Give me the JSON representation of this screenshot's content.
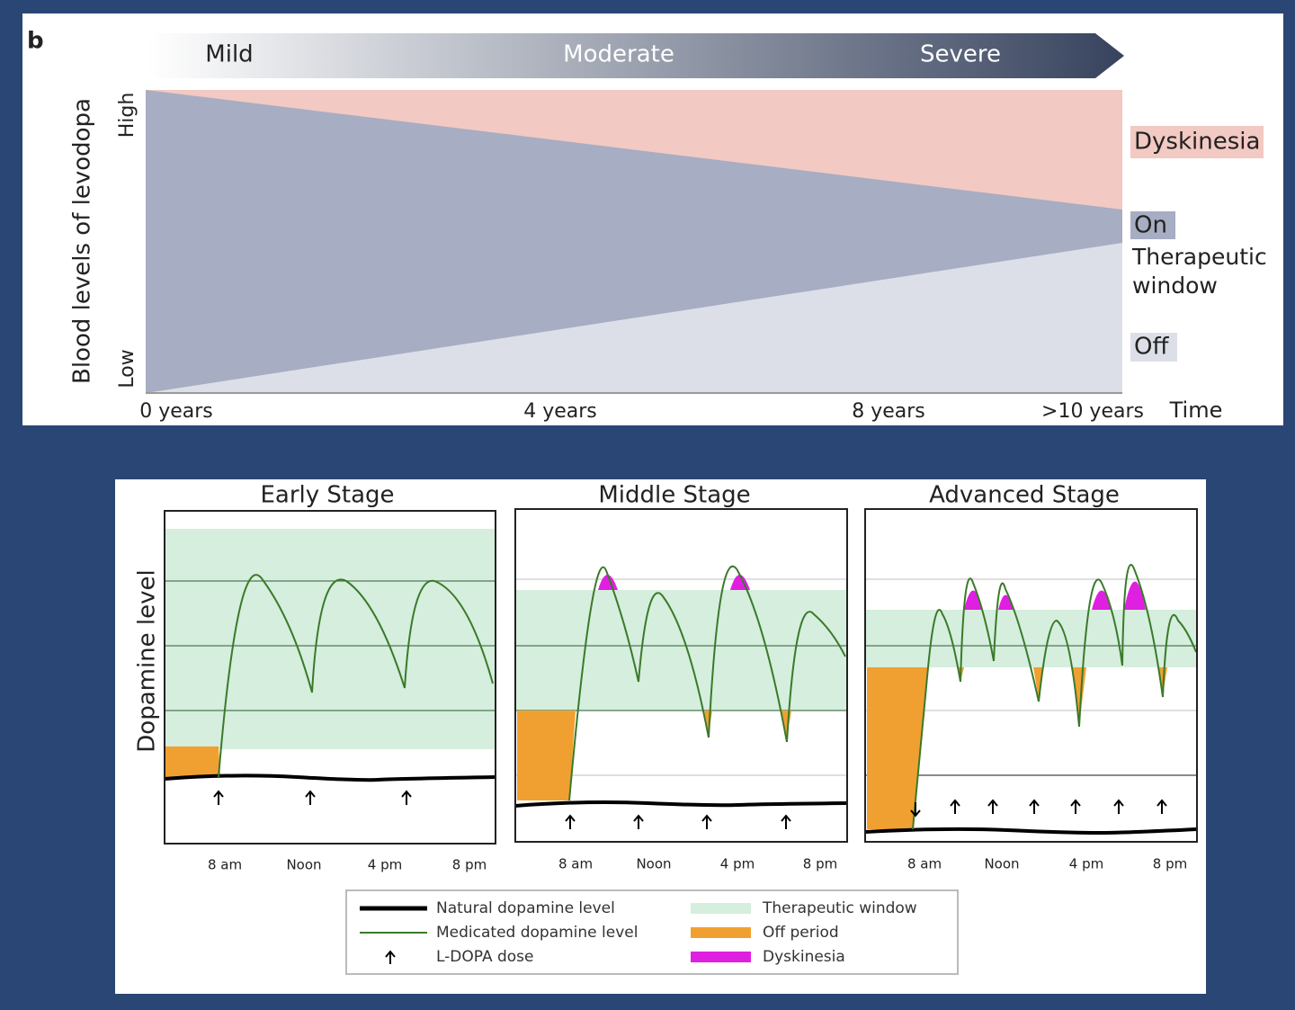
{
  "progression": {
    "panel_label": "b",
    "stages": [
      "Mild",
      "Moderate",
      "Severe"
    ],
    "y_axis_label": "Blood levels of levodopa",
    "y_high": "High",
    "y_low": "Low",
    "regions": {
      "dyskinesia": "Dyskinesia",
      "on": "On",
      "therapeutic_window": "Therapeutic window",
      "off": "Off"
    },
    "time_labels": [
      "0 years",
      "4 years",
      "8 years",
      ">10 years"
    ],
    "time_axis_label": "Time"
  },
  "daily": {
    "y_axis_label": "Dopamine level",
    "panels": [
      {
        "title": "Early Stage",
        "times": [
          "8 am",
          "Noon",
          "4 pm",
          "8 pm"
        ]
      },
      {
        "title": "Middle Stage",
        "times": [
          "8 am",
          "Noon",
          "4 pm",
          "8 pm"
        ]
      },
      {
        "title": "Advanced Stage",
        "times": [
          "8 am",
          "Noon",
          "4 pm",
          "8 pm"
        ]
      }
    ],
    "legend": [
      "Natural dopamine level",
      "Medicated dopamine level",
      "L-DOPA dose",
      "Therapeutic window",
      "Off period",
      "Dyskinesia"
    ]
  }
}
